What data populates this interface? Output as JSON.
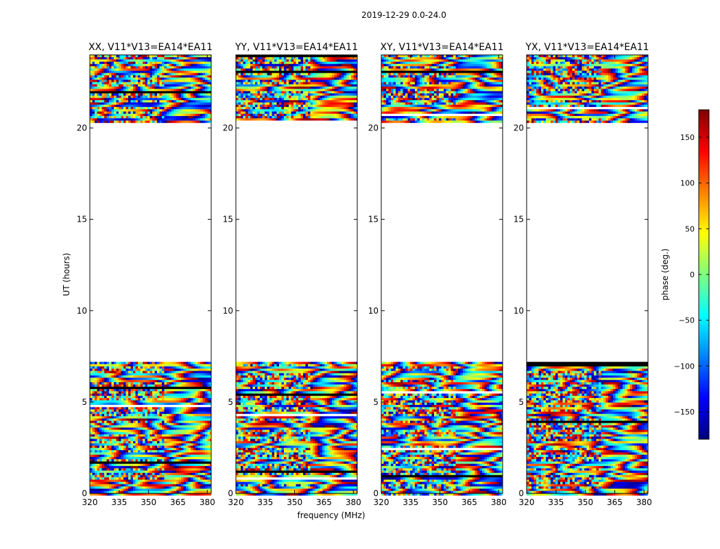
{
  "figure_title": "2019-12-29 0.0-24.0",
  "shared_xlabel": "frequency (MHz)",
  "shared_ylabel": "UT (hours)",
  "colorbar": {
    "label": "phase (deg.)",
    "range": [
      -180,
      180
    ],
    "ticks": [
      150,
      100,
      50,
      0,
      -50,
      -100,
      -150
    ],
    "tick_labels": [
      "150",
      "100",
      "50",
      "0",
      "−50",
      "−100",
      "−150"
    ],
    "colormap_stops": [
      "#00007f",
      "#0000ff",
      "#0080ff",
      "#00ffff",
      "#7fff7f",
      "#ffff00",
      "#ff8000",
      "#ff0000",
      "#7f0000"
    ]
  },
  "chart_data": [
    {
      "type": "heatmap",
      "title": "XX, V11*V13=EA14*EA11",
      "xlabel": "frequency (MHz)",
      "ylabel": "UT (hours)",
      "xlim": [
        320,
        382
      ],
      "ylim": [
        0,
        24
      ],
      "xticks": [
        320,
        335,
        350,
        365,
        380
      ],
      "yticks": [
        0,
        5,
        10,
        15,
        20
      ],
      "data_blocks_ut_hours": [
        [
          0,
          7.2
        ],
        [
          20.3,
          24
        ]
      ],
      "value": "phase (deg.)",
      "vrange": [
        -180,
        180
      ]
    },
    {
      "type": "heatmap",
      "title": "YY, V11*V13=EA14*EA11",
      "xlabel": "frequency (MHz)",
      "ylabel": "UT (hours)",
      "xlim": [
        320,
        382
      ],
      "ylim": [
        0,
        24
      ],
      "xticks": [
        320,
        335,
        350,
        365,
        380
      ],
      "yticks": [
        0,
        5,
        10,
        15,
        20
      ],
      "data_blocks_ut_hours": [
        [
          0,
          7.2
        ],
        [
          20.3,
          24
        ]
      ],
      "value": "phase (deg.)",
      "vrange": [
        -180,
        180
      ]
    },
    {
      "type": "heatmap",
      "title": "XY, V11*V13=EA14*EA11",
      "xlabel": "frequency (MHz)",
      "ylabel": "UT (hours)",
      "xlim": [
        320,
        382
      ],
      "ylim": [
        0,
        24
      ],
      "xticks": [
        320,
        335,
        350,
        365,
        380
      ],
      "yticks": [
        0,
        5,
        10,
        15,
        20
      ],
      "data_blocks_ut_hours": [
        [
          0,
          7.2
        ],
        [
          20.3,
          24
        ]
      ],
      "value": "phase (deg.)",
      "vrange": [
        -180,
        180
      ]
    },
    {
      "type": "heatmap",
      "title": "YX, V11*V13=EA14*EA11",
      "xlabel": "frequency (MHz)",
      "ylabel": "UT (hours)",
      "xlim": [
        320,
        382
      ],
      "ylim": [
        0,
        24
      ],
      "xticks": [
        320,
        335,
        350,
        365,
        380
      ],
      "yticks": [
        0,
        5,
        10,
        15,
        20
      ],
      "data_blocks_ut_hours": [
        [
          0,
          7.2
        ],
        [
          20.3,
          24
        ]
      ],
      "value": "phase (deg.)",
      "vrange": [
        -180,
        180
      ]
    }
  ]
}
